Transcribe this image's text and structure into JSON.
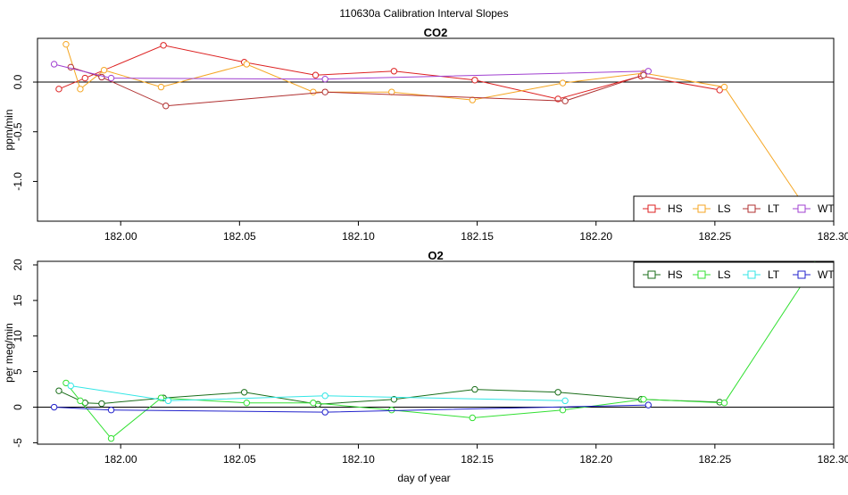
{
  "title": "110630a   Calibration Interval Slopes",
  "xlabel": "day of year",
  "chart_data": [
    {
      "type": "line",
      "title": "CO2",
      "ylabel": "ppm/min",
      "xlabel": "",
      "xlim": [
        181.965,
        182.3
      ],
      "ylim": [
        -1.4,
        0.44
      ],
      "xticks": [
        182.0,
        182.05,
        182.1,
        182.15,
        182.2,
        182.25,
        182.3
      ],
      "xtick_labels": [
        "182.00",
        "182.05",
        "182.10",
        "182.15",
        "182.20",
        "182.25",
        "182.30"
      ],
      "yticks": [
        0.0,
        -0.5,
        -1.0
      ],
      "ytick_labels": [
        "0.0",
        "-0.5",
        "-1.0"
      ],
      "hline": 0,
      "legend_position": "bottom-right",
      "series": [
        {
          "name": "HS",
          "color": "#dd2222",
          "x": [
            181.974,
            181.985,
            182.018,
            182.052,
            182.082,
            182.115,
            182.149,
            182.184,
            182.219,
            182.252
          ],
          "y": [
            -0.07,
            0.04,
            0.37,
            0.2,
            0.07,
            0.11,
            0.02,
            -0.17,
            0.06,
            -0.08
          ]
        },
        {
          "name": "LS",
          "color": "#f5a623",
          "x": [
            181.977,
            181.983,
            181.993,
            182.017,
            182.053,
            182.081,
            182.114,
            182.148,
            182.186,
            182.22,
            182.254,
            182.292
          ],
          "y": [
            0.38,
            -0.07,
            0.12,
            -0.05,
            0.18,
            -0.1,
            -0.1,
            -0.18,
            -0.01,
            0.09,
            -0.05,
            -1.4
          ]
        },
        {
          "name": "LT",
          "color": "#b03030",
          "x": [
            181.979,
            181.992,
            182.019,
            182.086,
            182.187,
            182.22
          ],
          "y": [
            0.15,
            0.05,
            -0.24,
            -0.1,
            -0.19,
            0.07
          ]
        },
        {
          "name": "WT",
          "color": "#a040d0",
          "x": [
            181.972,
            181.996,
            182.086,
            182.222
          ],
          "y": [
            0.18,
            0.04,
            0.03,
            0.11
          ]
        }
      ]
    },
    {
      "type": "line",
      "title": "O2",
      "ylabel": "per meg/min",
      "xlabel": "day of year",
      "xlim": [
        181.965,
        182.3
      ],
      "ylim": [
        -5.2,
        20.5
      ],
      "xticks": [
        182.0,
        182.05,
        182.1,
        182.15,
        182.2,
        182.25,
        182.3
      ],
      "xtick_labels": [
        "182.00",
        "182.05",
        "182.10",
        "182.15",
        "182.20",
        "182.25",
        "182.30"
      ],
      "yticks": [
        -5,
        0,
        5,
        10,
        15,
        20
      ],
      "ytick_labels": [
        "-5",
        "0",
        "5",
        "10",
        "15",
        "20"
      ],
      "hline": 0,
      "legend_position": "top-right",
      "series": [
        {
          "name": "HS",
          "color": "#1a6e1a",
          "x": [
            181.974,
            181.985,
            181.992,
            182.018,
            182.052,
            182.083,
            182.115,
            182.149,
            182.184,
            182.219,
            182.252
          ],
          "y": [
            2.3,
            0.6,
            0.5,
            1.3,
            2.1,
            0.4,
            1.1,
            2.5,
            2.1,
            1.1,
            0.7
          ],
          "data_labels": []
        },
        {
          "name": "LS",
          "color": "#33e033",
          "x": [
            181.977,
            181.983,
            181.996,
            182.017,
            182.053,
            182.081,
            182.114,
            182.148,
            182.186,
            182.22,
            182.254,
            182.292
          ],
          "y": [
            3.4,
            0.9,
            -4.4,
            1.3,
            0.6,
            0.6,
            -0.4,
            -1.5,
            -0.4,
            1.1,
            0.6,
            20.0
          ]
        },
        {
          "name": "LT",
          "color": "#33e6e6",
          "x": [
            181.979,
            182.02,
            182.086,
            182.187
          ],
          "y": [
            3.0,
            0.9,
            1.6,
            0.9
          ]
        },
        {
          "name": "WT",
          "color": "#2222cc",
          "x": [
            181.972,
            181.996,
            182.086,
            182.222
          ],
          "y": [
            0.0,
            -0.4,
            -0.7,
            0.3
          ]
        }
      ]
    }
  ]
}
